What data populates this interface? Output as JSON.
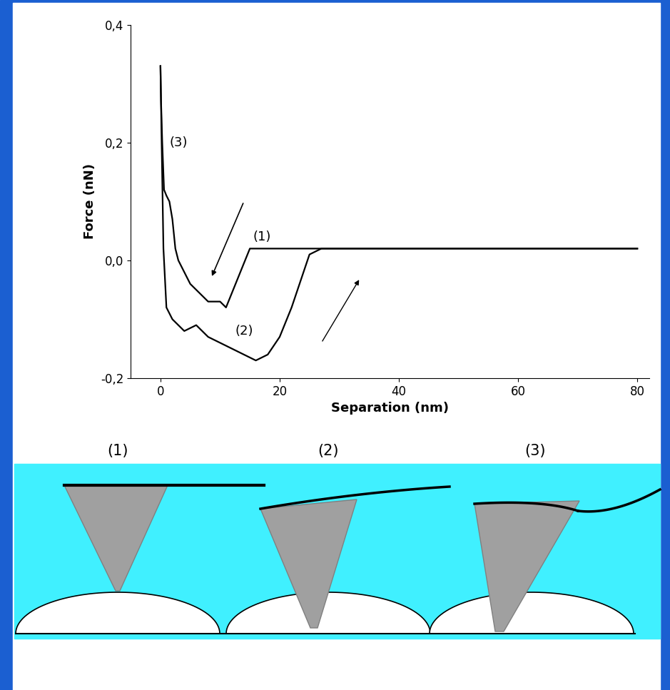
{
  "chart_data": {
    "type": "line",
    "xlabel": "Separation (nm)",
    "ylabel": "Force (nN)",
    "xlim": [
      -5,
      82
    ],
    "ylim": [
      -0.2,
      0.4
    ],
    "xticks": [
      0,
      20,
      40,
      60,
      80
    ],
    "yticks": [
      {
        "value": -0.2,
        "label": "-0,2"
      },
      {
        "value": 0.0,
        "label": "0,0"
      },
      {
        "value": 0.2,
        "label": "0,2"
      },
      {
        "value": 0.4,
        "label": "0,4"
      }
    ],
    "grid": false,
    "series": [
      {
        "color": "#000000",
        "line_style": "solid",
        "x": [
          80,
          60,
          40,
          30,
          20,
          16,
          15,
          13,
          11,
          10,
          8,
          6,
          5,
          4,
          3,
          2.5,
          2,
          1.5,
          1,
          0.6,
          0.3,
          0.1,
          0
        ],
        "values": [
          0.02,
          0.02,
          0.02,
          0.02,
          0.02,
          0.02,
          0.02,
          -0.03,
          -0.08,
          -0.07,
          -0.07,
          -0.05,
          -0.04,
          -0.02,
          0.0,
          0.02,
          0.07,
          0.1,
          0.11,
          0.12,
          0.2,
          0.27,
          0.33
        ]
      },
      {
        "color": "#000000",
        "line_style": "solid",
        "x": [
          0,
          0.2,
          0.5,
          1,
          2,
          4,
          6,
          8,
          10,
          12,
          14,
          16,
          18,
          20,
          22,
          24,
          25,
          27,
          30,
          40,
          60,
          80
        ],
        "values": [
          0.33,
          0.2,
          0.02,
          -0.08,
          -0.1,
          -0.12,
          -0.11,
          -0.13,
          -0.14,
          -0.15,
          -0.16,
          -0.17,
          -0.16,
          -0.13,
          -0.08,
          -0.02,
          0.01,
          0.02,
          0.02,
          0.02,
          0.02,
          0.02
        ]
      }
    ],
    "annotations": [
      {
        "text": "(3)",
        "x": 1.5,
        "y": 0.2
      },
      {
        "text": "(1)",
        "x": 15.5,
        "y": 0.04
      },
      {
        "text": "(2)",
        "x": 12.5,
        "y": -0.12
      }
    ]
  },
  "diagram": {
    "labels": [
      "(1)",
      "(2)",
      "(3)"
    ]
  }
}
